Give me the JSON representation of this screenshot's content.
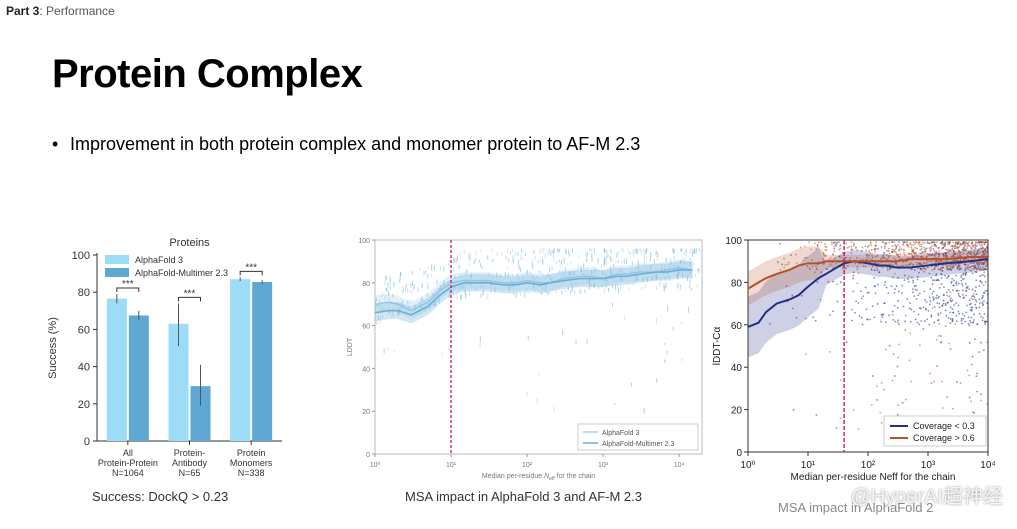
{
  "header": {
    "part_label": "Part 3",
    "part_rest": ": Performance"
  },
  "title": "Protein Complex",
  "bullet": "Improvement in both protein complex and monomer protein to AF-M 2.3",
  "colors": {
    "af3": "#9cdcf7",
    "afm": "#5fa8d3",
    "line_light": "#a6d2ec",
    "line_dark": "#6aaed6",
    "dash": "#c8185a",
    "cov_low": "#1f2f8a",
    "cov_high": "#b5522b"
  },
  "chart_data": [
    {
      "type": "bar",
      "title": "Proteins",
      "ylabel": "Success (%)",
      "ylim": [
        0,
        100
      ],
      "yticks": [
        "0",
        "20",
        "40",
        "60",
        "80",
        "100"
      ],
      "categories": [
        [
          "All",
          "Protein-Protein",
          "N=1064"
        ],
        [
          "Protein-",
          "Antibody",
          "N=65"
        ],
        [
          "Protein",
          "Monomers",
          "N=338"
        ]
      ],
      "series": [
        {
          "name": "AlphaFold 3",
          "values": [
            76.5,
            63,
            87
          ],
          "err_low": [
            74,
            51,
            86
          ],
          "err_high": [
            79,
            74,
            88
          ]
        },
        {
          "name": "AlphaFold-Multimer 2.3",
          "values": [
            67.5,
            29.5,
            85.5
          ],
          "err_low": [
            65,
            19,
            84.5
          ],
          "err_high": [
            70,
            41,
            86.5
          ]
        }
      ],
      "significance": [
        "***",
        "***",
        "***"
      ],
      "caption": "Success: DockQ > 0.23"
    },
    {
      "type": "line",
      "ylabel": "LDDT",
      "ylim": [
        0,
        100
      ],
      "yticks": [
        "0",
        "20",
        "40",
        "60",
        "80",
        "100"
      ],
      "xscale": "log",
      "xlim": [
        1,
        20000
      ],
      "xticks": [
        "10⁰",
        "10¹",
        "10²",
        "10³",
        "10⁴"
      ],
      "xlabel_pre": "Median per-residue ",
      "xlabel_sym": "N",
      "xlabel_sub": "eff",
      "xlabel_post": " for the chain",
      "vline_x": 10,
      "series": [
        {
          "name": "AlphaFold 3",
          "x": [
            1,
            1.5,
            2,
            3,
            5,
            7,
            10,
            15,
            20,
            30,
            50,
            70,
            100,
            150,
            200,
            300,
            500,
            700,
            1000,
            1500,
            2000,
            3000,
            5000,
            7000,
            10000,
            15000
          ],
          "y": [
            70,
            71,
            70,
            67,
            71,
            76,
            80,
            81,
            81,
            81,
            80,
            80,
            81,
            80,
            80,
            82,
            83,
            83,
            82,
            84,
            84,
            85,
            85,
            86,
            87,
            86
          ]
        },
        {
          "name": "AlphaFold-Multimer 2.3",
          "x": [
            1,
            1.5,
            2,
            3,
            5,
            7,
            10,
            15,
            20,
            30,
            50,
            70,
            100,
            150,
            200,
            300,
            500,
            700,
            1000,
            1500,
            2000,
            3000,
            5000,
            7000,
            10000,
            15000
          ],
          "y": [
            66,
            67,
            67,
            65,
            69,
            74,
            78,
            80,
            80,
            80,
            79,
            79,
            80,
            79,
            80,
            81,
            82,
            82,
            82,
            83,
            83,
            84,
            85,
            85,
            86,
            86
          ]
        }
      ],
      "legend_position": "bottom-right",
      "caption": "MSA impact in AlphaFold 3 and AF-M 2.3"
    },
    {
      "type": "scatter",
      "ylabel": "lDDT-Cα",
      "ylim": [
        0,
        100
      ],
      "yticks": [
        "0",
        "20",
        "40",
        "60",
        "80",
        "100"
      ],
      "xscale": "log",
      "xlim": [
        1,
        10000
      ],
      "xticks": [
        "10⁰",
        "10¹",
        "10²",
        "10³",
        "10⁴"
      ],
      "xlabel": "Median per-residue Neff for the chain",
      "vline_x": 40,
      "series": [
        {
          "name": "Coverage < 0.3",
          "x": [
            1,
            1.5,
            2,
            3,
            5,
            7,
            10,
            15,
            20,
            30,
            40,
            60,
            100,
            150,
            200,
            300,
            500,
            1000,
            2000,
            5000,
            10000
          ],
          "y": [
            59,
            61,
            66,
            70,
            72,
            74,
            78,
            82,
            84,
            87,
            89,
            90,
            89,
            88,
            88,
            87,
            87,
            88,
            89,
            90,
            91
          ]
        },
        {
          "name": "Coverage > 0.6",
          "x": [
            1,
            1.5,
            2,
            3,
            5,
            7,
            10,
            15,
            20,
            30,
            40,
            60,
            100,
            150,
            200,
            300,
            500,
            1000,
            2000,
            5000,
            10000
          ],
          "y": [
            77,
            80,
            82,
            84,
            86,
            88,
            89,
            89,
            90,
            90,
            90,
            90,
            90,
            90,
            90,
            90,
            91,
            91,
            91,
            92,
            92
          ]
        }
      ],
      "legend_position": "bottom-right",
      "caption": "MSA impact in AlphaFold 2"
    }
  ],
  "watermark": "@HyperAI超神经"
}
